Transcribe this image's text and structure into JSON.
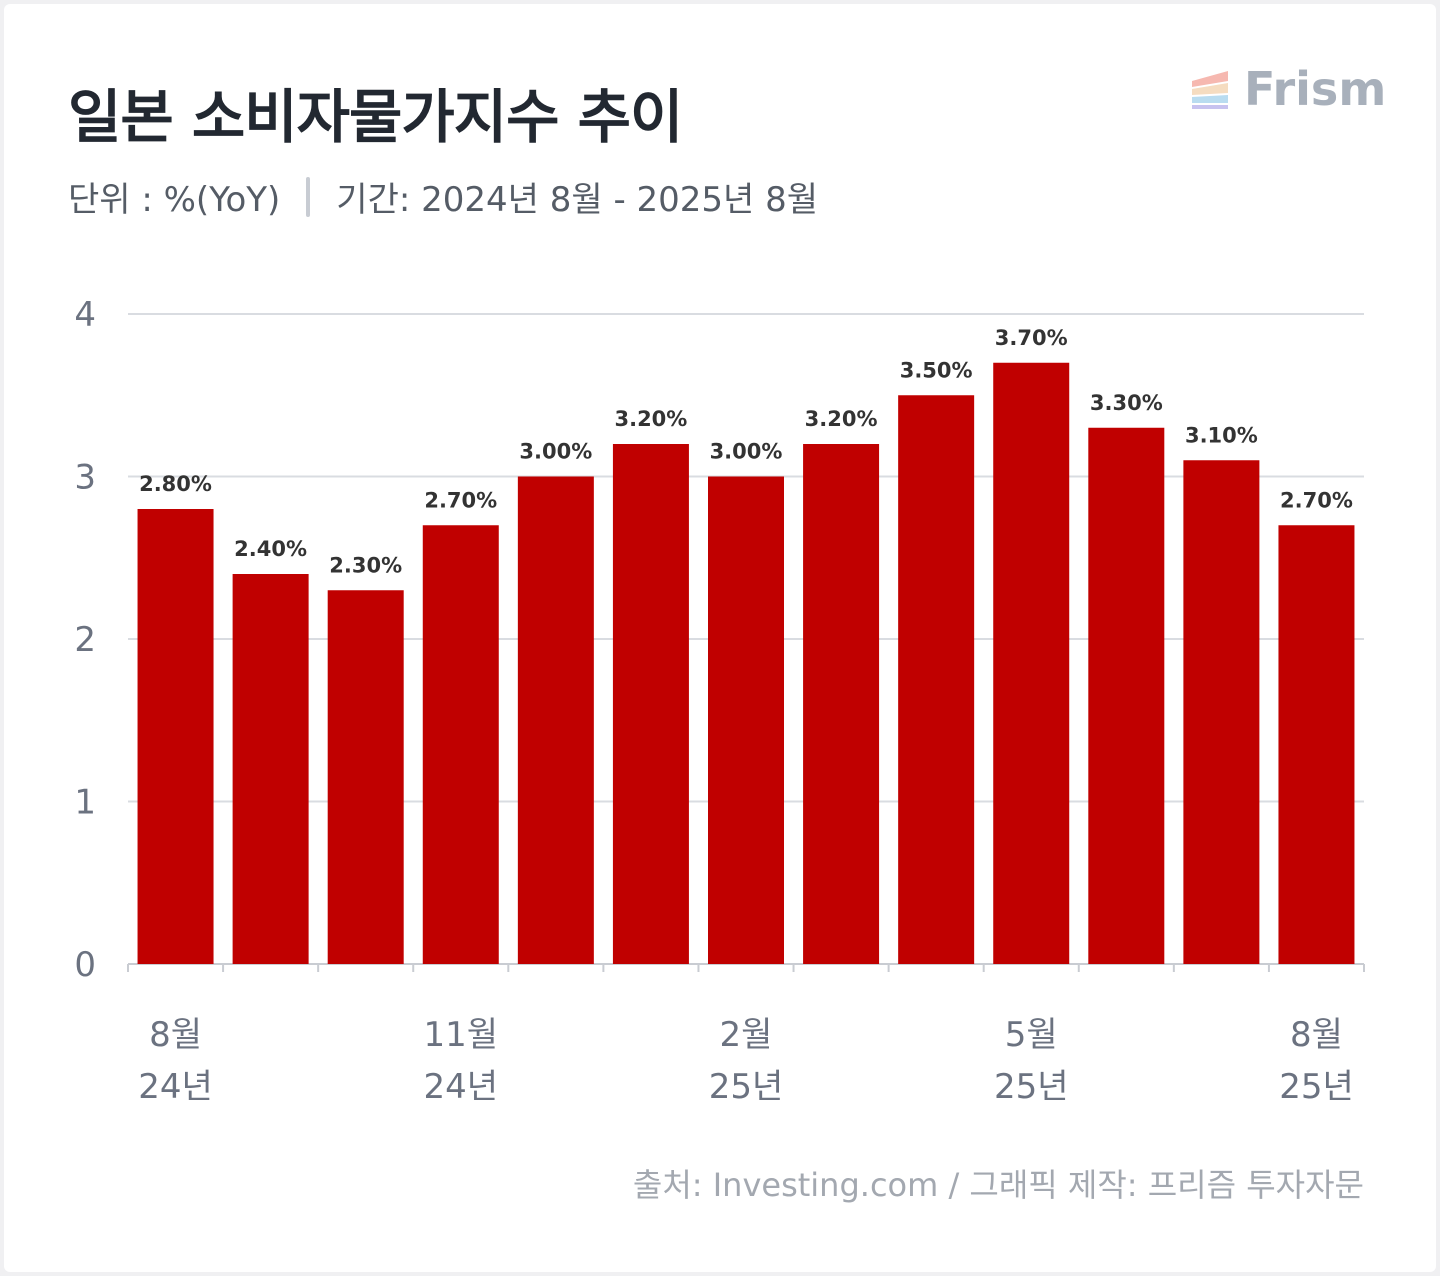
{
  "header": {
    "title": "일본 소비자물가지수 추이",
    "unit": "단위 : %(YoY)",
    "period": "기간: 2024년 8월 - 2025년 8월",
    "logo_text": "Frism"
  },
  "footer": {
    "source": "출처: Investing.com / 그래픽 제작: 프리즘 투자자문"
  },
  "colors": {
    "bar": "#c00000",
    "grid": "#d9dce1",
    "axis_text": "#6b7280",
    "label_text": "#333333"
  },
  "chart_data": {
    "type": "bar",
    "categories": [
      "2024-08",
      "2024-09",
      "2024-10",
      "2024-11",
      "2024-12",
      "2025-01",
      "2025-02",
      "2025-03",
      "2025-04",
      "2025-05",
      "2025-06",
      "2025-07",
      "2025-08"
    ],
    "values": [
      2.8,
      2.4,
      2.3,
      2.7,
      3.0,
      3.2,
      3.0,
      3.2,
      3.5,
      3.7,
      3.3,
      3.1,
      2.7
    ],
    "data_labels": [
      "2.80%",
      "2.40%",
      "2.30%",
      "2.70%",
      "3.00%",
      "3.20%",
      "3.00%",
      "3.20%",
      "3.50%",
      "3.70%",
      "3.30%",
      "3.10%",
      "2.70%"
    ],
    "ylim": [
      0,
      4
    ],
    "yticks": [
      "0",
      "1",
      "2",
      "3",
      "4"
    ],
    "xtick_labels": [
      {
        "index": 0,
        "month": "8월",
        "year": "24년"
      },
      {
        "index": 3,
        "month": "11월",
        "year": "24년"
      },
      {
        "index": 6,
        "month": "2월",
        "year": "25년"
      },
      {
        "index": 9,
        "month": "5월",
        "year": "25년"
      },
      {
        "index": 12,
        "month": "8월",
        "year": "25년"
      }
    ],
    "grid": true,
    "xlabel": "",
    "ylabel": ""
  }
}
